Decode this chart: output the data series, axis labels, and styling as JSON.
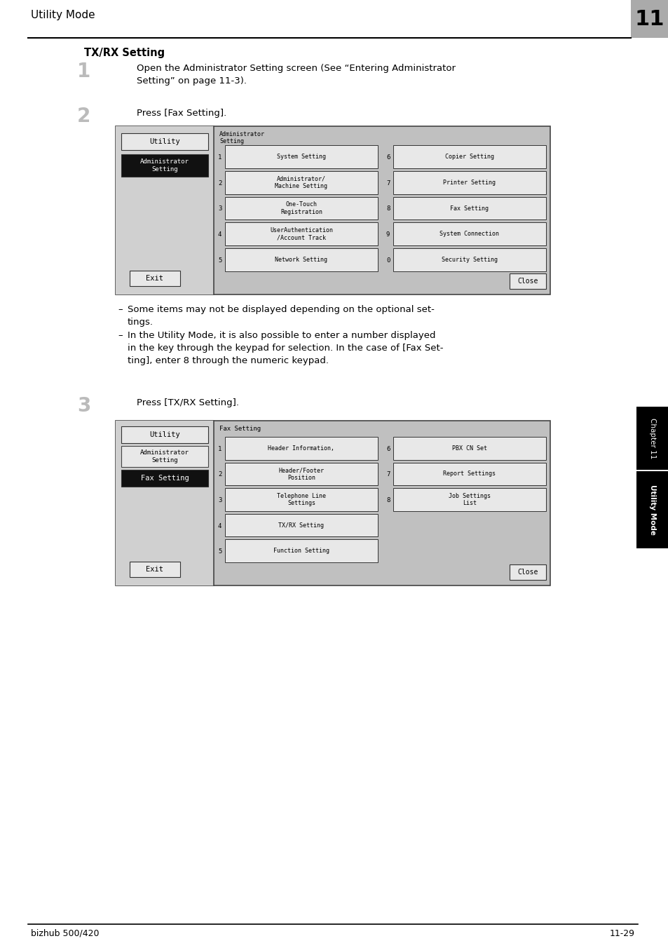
{
  "page_title": "Utility Mode",
  "page_number_text": "11",
  "section_title": "TX/RX Setting",
  "step1_number": "1",
  "step1_text": "Open the Administrator Setting screen (See “Entering Administrator\nSetting” on page 11-3).",
  "step2_number": "2",
  "step2_text": "Press [Fax Setting].",
  "step3_number": "3",
  "step3_text": "Press [TX/RX Setting].",
  "bullet1": "Some items may not be displayed depending on the optional set-\ntings.",
  "bullet2": "In the Utility Mode, it is also possible to enter a number displayed\nin the key through the keypad for selection. In the case of [Fax Set-\nting], enter 8 through the numeric keypad.",
  "footer_left": "bizhub 500/420",
  "footer_right": "11-29",
  "screen1": {
    "left_panel": {
      "btn_utility": "Utility",
      "btn_admin": "Administrator\nSetting",
      "btn_exit": "Exit"
    },
    "right_panel": {
      "label": "Administrator\nSetting",
      "items_left": [
        {
          "num": "1",
          "text": "System Setting"
        },
        {
          "num": "2",
          "text": "Administrator/\nMachine Setting"
        },
        {
          "num": "3",
          "text": "One-Touch\nRegistration"
        },
        {
          "num": "4",
          "text": "UserAuthentication\n/Account Track"
        },
        {
          "num": "5",
          "text": "Network Setting"
        }
      ],
      "items_right": [
        {
          "num": "6",
          "text": "Copier Setting"
        },
        {
          "num": "7",
          "text": "Printer Setting"
        },
        {
          "num": "8",
          "text": "Fax Setting"
        },
        {
          "num": "9",
          "text": "System Connection"
        },
        {
          "num": "0",
          "text": "Security Setting"
        }
      ],
      "btn_close": "Close"
    }
  },
  "screen2": {
    "left_panel": {
      "btn_utility": "Utility",
      "btn_admin": "Administrator\nSetting",
      "btn_fax": "Fax Setting",
      "btn_exit": "Exit"
    },
    "right_panel": {
      "label": "Fax Setting",
      "items_left": [
        {
          "num": "1",
          "text": "Header Information,"
        },
        {
          "num": "2",
          "text": "Header/Footer\nPosition"
        },
        {
          "num": "3",
          "text": "Telephone Line\nSettings"
        },
        {
          "num": "4",
          "text": "TX/RX Setting"
        },
        {
          "num": "5",
          "text": "Function Setting"
        }
      ],
      "items_right": [
        {
          "num": "6",
          "text": "PBX CN Set"
        },
        {
          "num": "7",
          "text": "Report Settings"
        },
        {
          "num": "8",
          "text": "Job Settings\nList"
        }
      ],
      "btn_close": "Close"
    }
  }
}
